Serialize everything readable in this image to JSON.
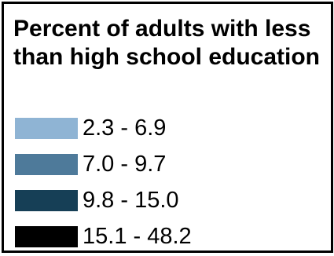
{
  "legend": {
    "title": "Percent of adults with less than high school education",
    "items": [
      {
        "label": "2.3 - 6.9",
        "color": "#8fb4d4"
      },
      {
        "label": "7.0 - 9.7",
        "color": "#4e7a9a"
      },
      {
        "label": "9.8 - 15.0",
        "color": "#163f56"
      },
      {
        "label": "15.1 - 48.2",
        "color": "#000000"
      }
    ]
  }
}
